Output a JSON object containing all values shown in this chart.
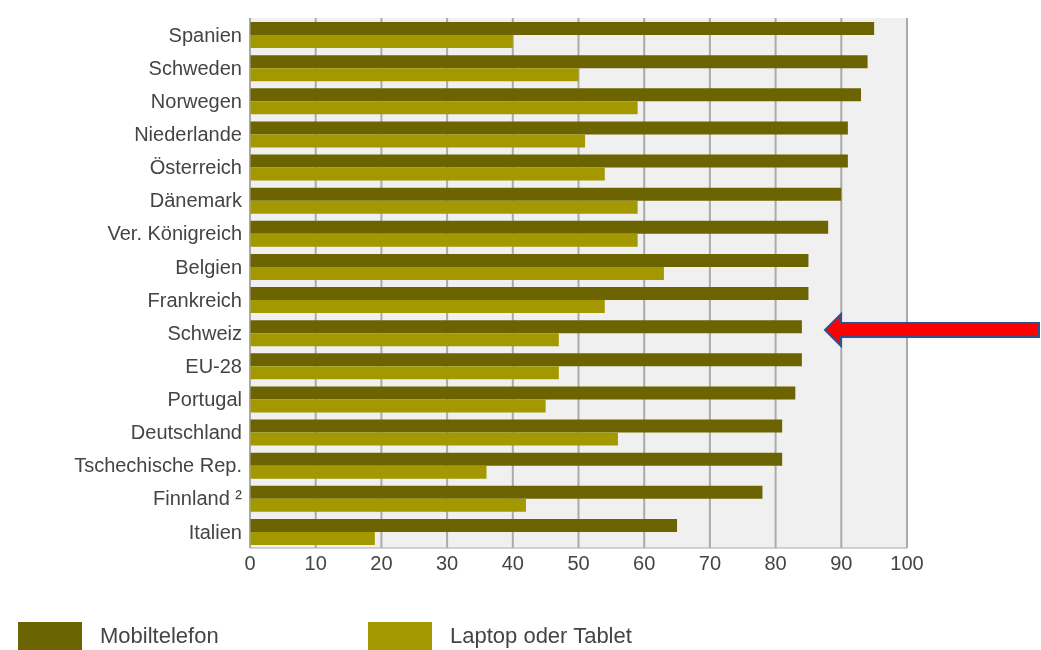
{
  "chart_data": {
    "type": "bar",
    "orientation": "horizontal",
    "categories": [
      "Spanien",
      "Schweden",
      "Norwegen",
      "Niederlande",
      "Österreich",
      "Dänemark",
      "Ver. Königreich",
      "Belgien",
      "Frankreich",
      "Schweiz",
      "EU-28",
      "Portugal",
      "Deutschland",
      "Tschechische Rep.",
      "Finnland ²",
      "Italien"
    ],
    "series": [
      {
        "name": "Mobiltelefon",
        "color": "#6b6400",
        "values": [
          95,
          94,
          93,
          91,
          91,
          90,
          88,
          85,
          85,
          84,
          84,
          83,
          81,
          81,
          78,
          65
        ]
      },
      {
        "name": "Laptop oder Tablet",
        "color": "#a39800",
        "values": [
          40,
          50,
          59,
          51,
          54,
          59,
          59,
          63,
          54,
          47,
          47,
          45,
          56,
          36,
          42,
          19
        ]
      }
    ],
    "xlim": [
      0,
      100
    ],
    "xticks": [
      0,
      10,
      20,
      30,
      40,
      50,
      60,
      70,
      80,
      90,
      100
    ],
    "grid": "x",
    "legend": "bottom left"
  }
}
